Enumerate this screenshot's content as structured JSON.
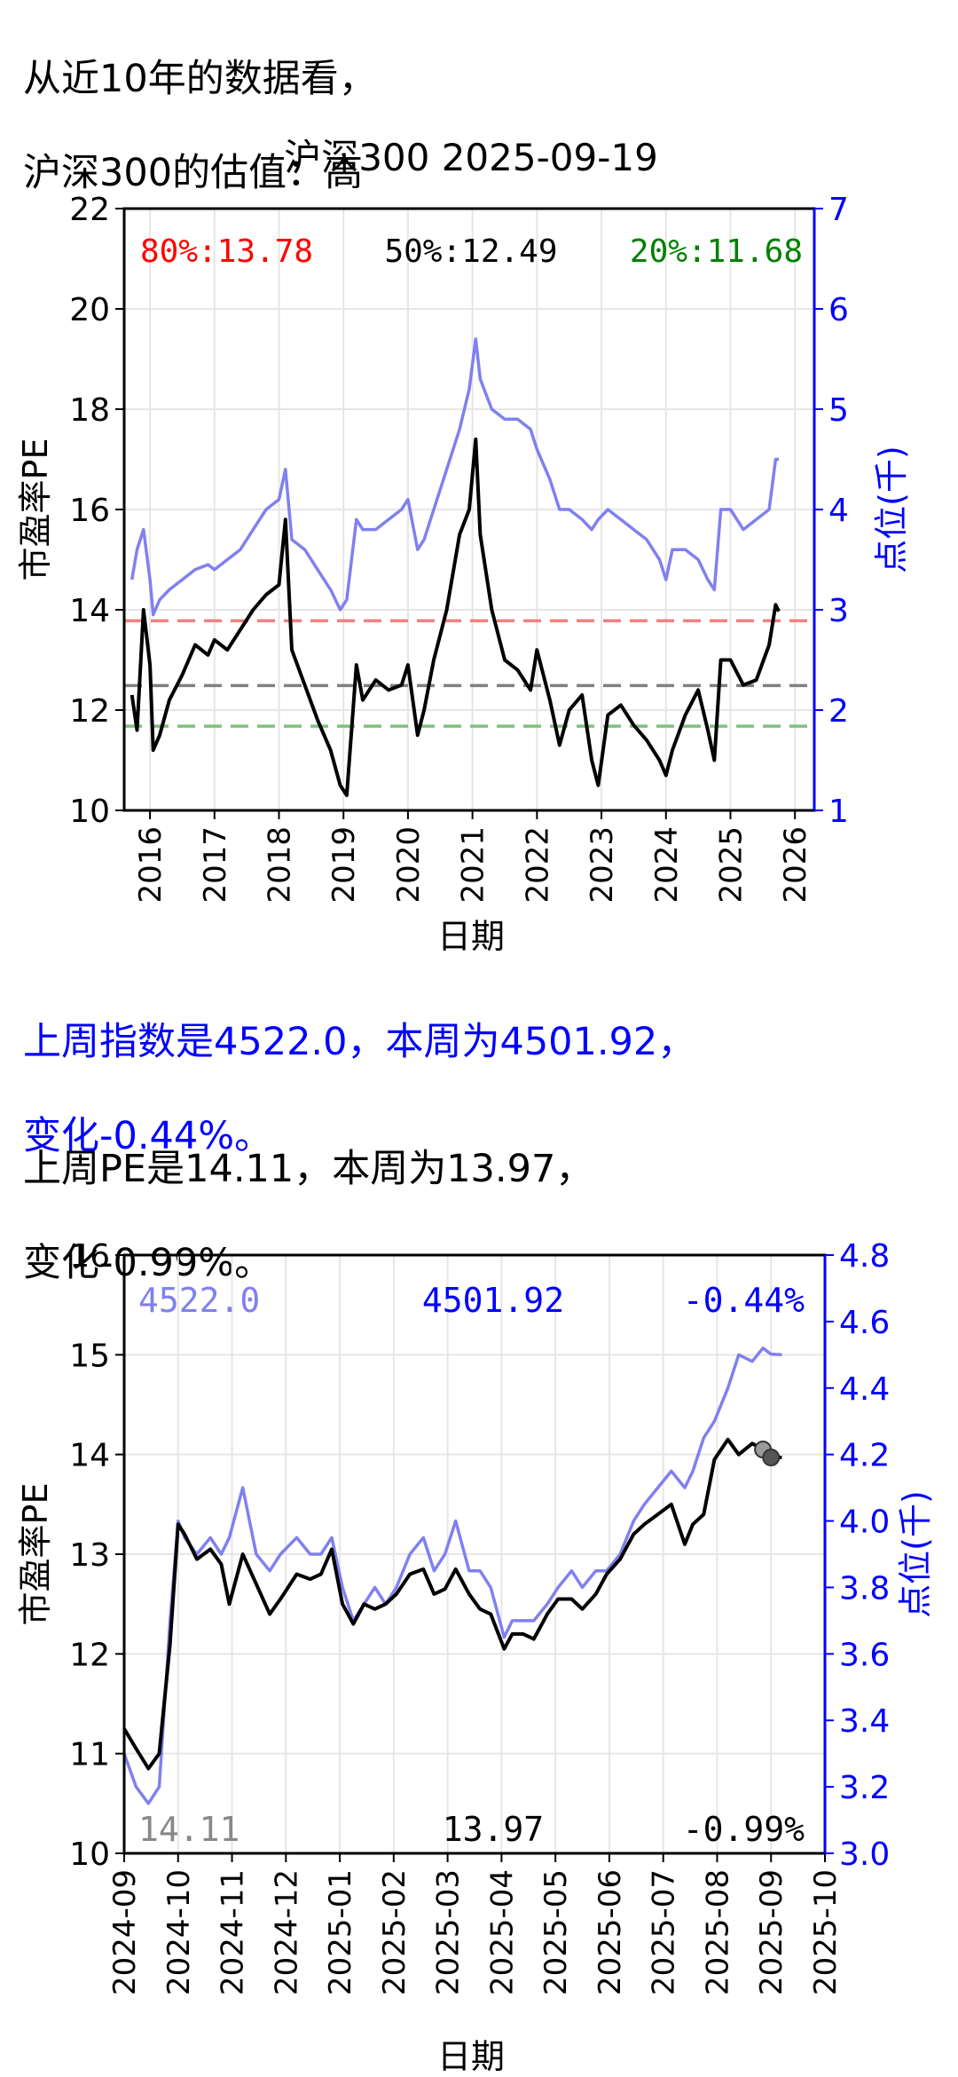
{
  "heading": {
    "line1": "从近10年的数据看，",
    "line2": "沪深300的估值：高"
  },
  "index_change_text": {
    "line1": "上周指数是4522.0，本周为4501.92，",
    "line2": "变化-0.44%。"
  },
  "pe_change_text": {
    "line1": "上周PE是14.11，本周为13.97，",
    "line2": "变化-0.99%。"
  },
  "colors": {
    "pe_line": "#000000",
    "index_line": "#8080f0",
    "axis_right": "#0000ff",
    "p80": "#f08080",
    "p50": "#808080",
    "p20": "#80c080"
  },
  "chart_data": [
    {
      "type": "line",
      "title": "沪深300 2025-09-19",
      "xlabel": "日期",
      "ylabel": "市盈率PE",
      "ylabel_right": "点位(千)",
      "ylim": [
        10,
        22
      ],
      "ylim_right": [
        1,
        7
      ],
      "xlim": [
        2015.6,
        2026.3
      ],
      "x_ticks": [
        "2016",
        "2017",
        "2018",
        "2019",
        "2020",
        "2021",
        "2022",
        "2023",
        "2024",
        "2025",
        "2026"
      ],
      "y_ticks": [
        "10",
        "12",
        "14",
        "16",
        "18",
        "20",
        "22"
      ],
      "y_ticks_right": [
        "1",
        "2",
        "3",
        "4",
        "5",
        "6",
        "7"
      ],
      "grid": true,
      "percentiles": [
        {
          "label": "80%:13.78",
          "value": 13.78,
          "color": "#ff0000"
        },
        {
          "label": "50%:12.49",
          "value": 12.49,
          "color": "#000000"
        },
        {
          "label": "20%:11.68",
          "value": 11.68,
          "color": "#008000"
        }
      ],
      "series": [
        {
          "axis": "left",
          "x": [
            2015.72,
            2015.8,
            2015.9,
            2016.0,
            2016.05,
            2016.15,
            2016.3,
            2016.5,
            2016.7,
            2016.9,
            2017.0,
            2017.2,
            2017.4,
            2017.6,
            2017.8,
            2018.0,
            2018.1,
            2018.2,
            2018.4,
            2018.6,
            2018.8,
            2018.95,
            2019.05,
            2019.2,
            2019.3,
            2019.5,
            2019.7,
            2019.9,
            2020.0,
            2020.15,
            2020.25,
            2020.4,
            2020.6,
            2020.8,
            2020.95,
            2021.05,
            2021.12,
            2021.3,
            2021.5,
            2021.7,
            2021.9,
            2022.0,
            2022.2,
            2022.35,
            2022.5,
            2022.7,
            2022.85,
            2022.95,
            2023.1,
            2023.3,
            2023.5,
            2023.7,
            2023.9,
            2024.0,
            2024.1,
            2024.3,
            2024.5,
            2024.65,
            2024.75,
            2024.85,
            2025.0,
            2025.2,
            2025.4,
            2025.6,
            2025.7,
            2025.75
          ],
          "values": [
            12.3,
            11.6,
            14.0,
            12.9,
            11.2,
            11.5,
            12.2,
            12.7,
            13.3,
            13.1,
            13.4,
            13.2,
            13.6,
            14.0,
            14.3,
            14.5,
            15.8,
            13.2,
            12.5,
            11.8,
            11.2,
            10.5,
            10.3,
            12.9,
            12.2,
            12.6,
            12.4,
            12.5,
            12.9,
            11.5,
            12.0,
            13.0,
            14.0,
            15.5,
            16.0,
            17.4,
            15.5,
            14.0,
            13.0,
            12.8,
            12.4,
            13.2,
            12.2,
            11.3,
            12.0,
            12.3,
            11.0,
            10.5,
            11.9,
            12.1,
            11.7,
            11.4,
            11.0,
            10.7,
            11.2,
            11.9,
            12.4,
            11.6,
            11.0,
            13.0,
            13.0,
            12.5,
            12.6,
            13.3,
            14.1,
            13.97
          ]
        },
        {
          "axis": "right",
          "x": [
            2015.72,
            2015.8,
            2015.9,
            2016.0,
            2016.05,
            2016.15,
            2016.3,
            2016.5,
            2016.7,
            2016.9,
            2017.0,
            2017.2,
            2017.4,
            2017.6,
            2017.8,
            2018.0,
            2018.1,
            2018.2,
            2018.4,
            2018.6,
            2018.8,
            2018.95,
            2019.05,
            2019.2,
            2019.3,
            2019.5,
            2019.7,
            2019.9,
            2020.0,
            2020.15,
            2020.25,
            2020.4,
            2020.6,
            2020.8,
            2020.95,
            2021.05,
            2021.12,
            2021.3,
            2021.5,
            2021.7,
            2021.9,
            2022.0,
            2022.2,
            2022.35,
            2022.5,
            2022.7,
            2022.85,
            2022.95,
            2023.1,
            2023.3,
            2023.5,
            2023.7,
            2023.9,
            2024.0,
            2024.1,
            2024.3,
            2024.5,
            2024.65,
            2024.75,
            2024.85,
            2025.0,
            2025.2,
            2025.4,
            2025.6,
            2025.7,
            2025.75
          ],
          "values": [
            3.3,
            3.6,
            3.8,
            3.3,
            2.95,
            3.1,
            3.2,
            3.3,
            3.4,
            3.45,
            3.4,
            3.5,
            3.6,
            3.8,
            4.0,
            4.1,
            4.4,
            3.7,
            3.6,
            3.4,
            3.2,
            3.0,
            3.1,
            3.9,
            3.8,
            3.8,
            3.9,
            4.0,
            4.1,
            3.6,
            3.7,
            4.0,
            4.4,
            4.8,
            5.2,
            5.7,
            5.3,
            5.0,
            4.9,
            4.9,
            4.8,
            4.6,
            4.3,
            4.0,
            4.0,
            3.9,
            3.8,
            3.9,
            4.0,
            3.9,
            3.8,
            3.7,
            3.5,
            3.3,
            3.6,
            3.6,
            3.5,
            3.3,
            3.2,
            4.0,
            4.0,
            3.8,
            3.9,
            4.0,
            4.5,
            4.5
          ]
        }
      ]
    },
    {
      "type": "line",
      "title": "",
      "xlabel": "日期",
      "ylabel": "市盈率PE",
      "ylabel_right": "点位(千)",
      "ylim": [
        10,
        16
      ],
      "ylim_right": [
        3.0,
        4.8
      ],
      "xlim": [
        0,
        13
      ],
      "x_ticks": [
        "2024-09",
        "2024-10",
        "2024-11",
        "2024-12",
        "2025-01",
        "2025-02",
        "2025-03",
        "2025-04",
        "2025-05",
        "2025-06",
        "2025-07",
        "2025-08",
        "2025-09",
        "2025-10"
      ],
      "y_ticks": [
        "10",
        "11",
        "12",
        "13",
        "14",
        "15",
        "16"
      ],
      "y_ticks_right": [
        "3.0",
        "3.2",
        "3.4",
        "3.6",
        "3.8",
        "4.0",
        "4.2",
        "4.4",
        "4.6",
        "4.8"
      ],
      "grid": true,
      "labels_top": {
        "prev": "4522.0",
        "curr": "4501.92",
        "change": "-0.44%"
      },
      "labels_bottom": {
        "prev": "14.11",
        "curr": "13.97",
        "change": "-0.99%"
      },
      "series": [
        {
          "axis": "left",
          "x": [
            0.0,
            0.22,
            0.45,
            0.65,
            0.85,
            1.0,
            1.12,
            1.35,
            1.6,
            1.8,
            1.95,
            2.2,
            2.45,
            2.7,
            2.9,
            3.2,
            3.45,
            3.65,
            3.85,
            4.05,
            4.25,
            4.45,
            4.65,
            4.85,
            5.05,
            5.3,
            5.55,
            5.75,
            5.95,
            6.15,
            6.4,
            6.6,
            6.8,
            7.05,
            7.2,
            7.4,
            7.6,
            7.85,
            8.05,
            8.3,
            8.5,
            8.75,
            8.95,
            9.2,
            9.45,
            9.65,
            9.9,
            10.15,
            10.4,
            10.55,
            10.75,
            10.95,
            11.2,
            11.4,
            11.65,
            11.85,
            12.0,
            12.2
          ],
          "values": [
            11.25,
            11.05,
            10.85,
            11.0,
            12.1,
            13.3,
            13.2,
            12.95,
            13.05,
            12.9,
            12.5,
            13.0,
            12.7,
            12.4,
            12.55,
            12.8,
            12.75,
            12.8,
            13.05,
            12.5,
            12.3,
            12.5,
            12.45,
            12.5,
            12.6,
            12.8,
            12.85,
            12.6,
            12.65,
            12.85,
            12.6,
            12.45,
            12.4,
            12.05,
            12.2,
            12.2,
            12.15,
            12.4,
            12.55,
            12.55,
            12.45,
            12.6,
            12.8,
            12.95,
            13.2,
            13.3,
            13.4,
            13.5,
            13.1,
            13.3,
            13.4,
            13.95,
            14.15,
            14.0,
            14.11,
            14.05,
            13.97,
            13.97
          ]
        },
        {
          "axis": "right",
          "x": [
            0.0,
            0.22,
            0.45,
            0.65,
            0.85,
            1.0,
            1.12,
            1.35,
            1.6,
            1.8,
            1.95,
            2.2,
            2.45,
            2.7,
            2.9,
            3.2,
            3.45,
            3.65,
            3.85,
            4.05,
            4.25,
            4.45,
            4.65,
            4.85,
            5.05,
            5.3,
            5.55,
            5.75,
            5.95,
            6.15,
            6.4,
            6.6,
            6.8,
            7.05,
            7.2,
            7.4,
            7.6,
            7.85,
            8.05,
            8.3,
            8.5,
            8.75,
            8.95,
            9.2,
            9.45,
            9.65,
            9.9,
            10.15,
            10.4,
            10.55,
            10.75,
            10.95,
            11.2,
            11.4,
            11.65,
            11.85,
            12.0,
            12.2
          ],
          "values": [
            3.3,
            3.2,
            3.15,
            3.2,
            3.7,
            4.0,
            3.95,
            3.9,
            3.95,
            3.9,
            3.95,
            4.1,
            3.9,
            3.85,
            3.9,
            3.95,
            3.9,
            3.9,
            3.95,
            3.8,
            3.7,
            3.75,
            3.8,
            3.75,
            3.8,
            3.9,
            3.95,
            3.85,
            3.9,
            4.0,
            3.85,
            3.85,
            3.8,
            3.65,
            3.7,
            3.7,
            3.7,
            3.75,
            3.8,
            3.85,
            3.8,
            3.85,
            3.85,
            3.9,
            4.0,
            4.05,
            4.1,
            4.15,
            4.1,
            4.15,
            4.25,
            4.3,
            4.4,
            4.5,
            4.48,
            4.52,
            4.502,
            4.5
          ]
        }
      ]
    }
  ]
}
